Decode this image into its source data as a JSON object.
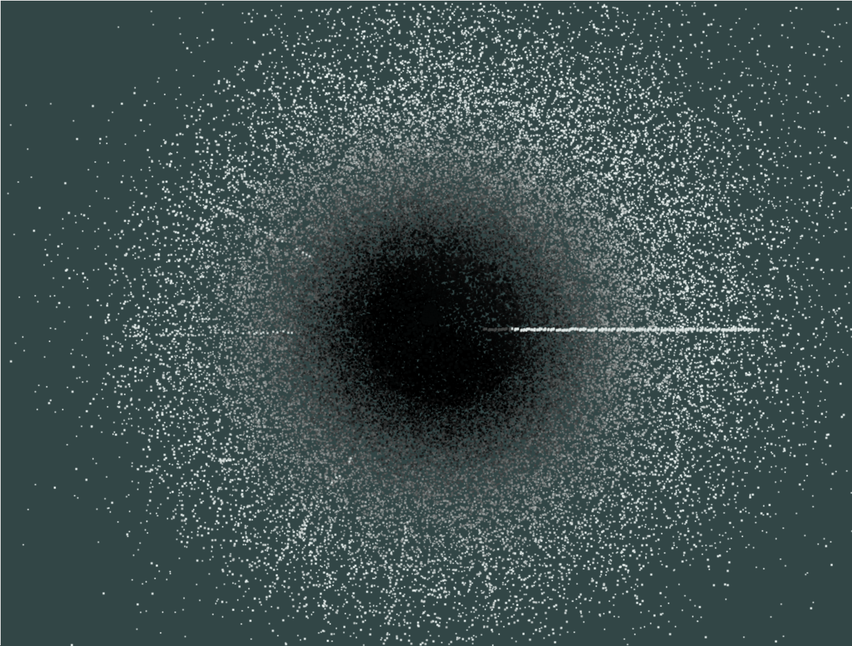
{
  "scene": {
    "background_color": "#324646",
    "particle_color_light": "#e8f0ee",
    "particle_color_dark": "#000000",
    "shape": "radial particle burst",
    "radial_streaks": true
  }
}
